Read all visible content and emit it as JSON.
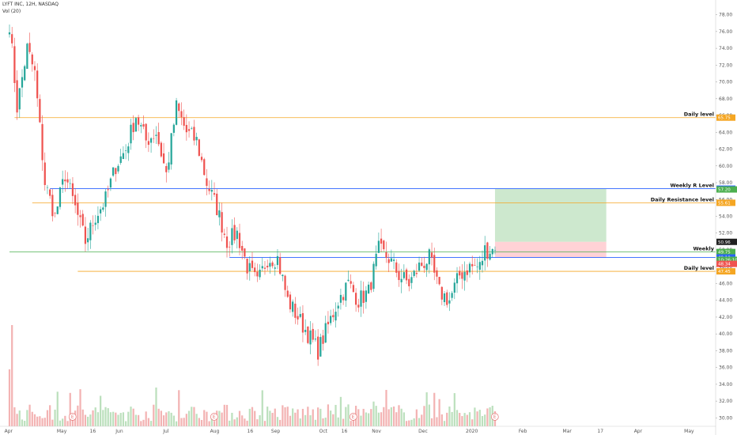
{
  "header": {
    "symbol_line": "LYFT INC, 12H, NASDAQ",
    "volume_label": "Vol (20)"
  },
  "colors": {
    "up": "#26a69a",
    "down": "#ef5350",
    "daily": "#f5a623",
    "weekly_r": "#2962ff",
    "weekly": "#4caf50",
    "target_zone": "#c8e6c9",
    "stop_zone": "#ffcdd2"
  },
  "chart_data": {
    "type": "candlestick",
    "title": "LYFT INC, 12H, NASDAQ",
    "ylim": [
      29,
      79
    ],
    "y_ticks": [
      "30.00",
      "32.00",
      "34.00",
      "36.00",
      "38.00",
      "40.00",
      "42.00",
      "44.00",
      "46.00",
      "48.00",
      "50.00",
      "52.00",
      "54.00",
      "56.00",
      "58.00",
      "60.00",
      "62.00",
      "64.00",
      "66.00",
      "68.00",
      "70.00",
      "72.00",
      "74.00",
      "76.00",
      "78.00"
    ],
    "x_ticks": [
      "Apr",
      "May",
      "16",
      "Jun",
      "Jul",
      "Aug",
      "16",
      "Sep",
      "Oct",
      "16",
      "Nov",
      "Dec",
      "2020",
      "Feb",
      "Mar",
      "17",
      "Apr",
      "May"
    ],
    "price_path": [
      [
        0,
        77
      ],
      [
        3,
        67
      ],
      [
        7,
        74
      ],
      [
        10,
        71
      ],
      [
        14,
        58
      ],
      [
        18,
        54
      ],
      [
        22,
        59
      ],
      [
        26,
        55
      ],
      [
        30,
        51
      ],
      [
        34,
        54
      ],
      [
        38,
        56
      ],
      [
        42,
        60
      ],
      [
        46,
        62
      ],
      [
        50,
        66
      ],
      [
        54,
        63
      ],
      [
        58,
        64
      ],
      [
        62,
        59
      ],
      [
        66,
        67
      ],
      [
        70,
        64
      ],
      [
        74,
        63
      ],
      [
        78,
        58
      ],
      [
        82,
        55
      ],
      [
        86,
        51
      ],
      [
        90,
        52
      ],
      [
        94,
        48
      ],
      [
        98,
        46
      ],
      [
        102,
        49
      ],
      [
        106,
        49
      ],
      [
        110,
        44
      ],
      [
        114,
        42
      ],
      [
        118,
        40
      ],
      [
        122,
        38
      ],
      [
        126,
        41
      ],
      [
        130,
        44
      ],
      [
        134,
        46
      ],
      [
        138,
        44
      ],
      [
        142,
        45
      ],
      [
        146,
        50
      ],
      [
        150,
        49
      ],
      [
        154,
        47
      ],
      [
        158,
        46
      ],
      [
        162,
        48
      ],
      [
        166,
        49
      ],
      [
        170,
        45
      ],
      [
        174,
        44
      ],
      [
        178,
        47
      ],
      [
        182,
        48
      ],
      [
        186,
        48
      ],
      [
        188,
        50
      ],
      [
        192,
        50
      ]
    ],
    "levels": [
      {
        "label": "Daily level",
        "price": 65.75,
        "color": "#f5a623",
        "tag": "65.75",
        "show_label": true
      },
      {
        "label": "Weekly R Level",
        "price": 57.29,
        "color": "#2962ff",
        "tag": "57.29",
        "show_label": true
      },
      {
        "label": "Daily Resistance level",
        "price": 55.61,
        "color": "#f5a623",
        "tag": "55.61",
        "show_label": true
      },
      {
        "label": "Weekly",
        "price": 49.75,
        "color": "#4caf50",
        "tag": "49.75",
        "show_label": true
      },
      {
        "label": "",
        "price": 49.1,
        "color": "#2962ff",
        "tag": "49.10",
        "show_label": false
      },
      {
        "label": "Daily level",
        "price": 47.45,
        "color": "#f5a623",
        "tag": "47.45",
        "show_label": true
      }
    ],
    "extra_tags": [
      {
        "price": 57.2,
        "color": "#4caf50",
        "tag": "57.20"
      },
      {
        "price": 50.96,
        "color": "#222222",
        "tag": "50.96"
      },
      {
        "price": 48.82,
        "color": "#4caf50",
        "tag": "10:26:10"
      },
      {
        "price": 48.34,
        "color": "#ef5350",
        "tag": "48.34"
      }
    ],
    "position": {
      "entry": 49.1,
      "stop": 50.96,
      "target": 57.29,
      "start_index": 192,
      "end_index": 236
    },
    "earnings": [
      24,
      80,
      135,
      191
    ],
    "earnings_marker": "E"
  }
}
